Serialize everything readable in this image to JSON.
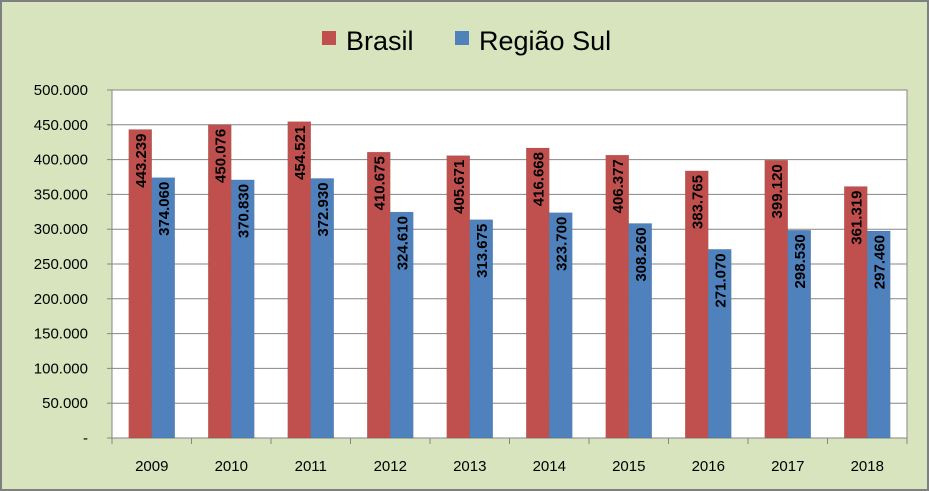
{
  "chart_data": {
    "type": "bar",
    "categories": [
      "2009",
      "2010",
      "2011",
      "2012",
      "2013",
      "2014",
      "2015",
      "2016",
      "2017",
      "2018"
    ],
    "series": [
      {
        "name": "Brasil",
        "color": "#c0504d",
        "values": [
          443239,
          450076,
          454521,
          410675,
          405671,
          416668,
          406377,
          383765,
          399120,
          361319
        ],
        "labels": [
          "443.239",
          "450.076",
          "454.521",
          "410.675",
          "405.671",
          "416.668",
          "406.377",
          "383.765",
          "399.120",
          "361.319"
        ]
      },
      {
        "name": "Região Sul",
        "color": "#4f81bd",
        "values": [
          374060,
          370830,
          372930,
          324610,
          313675,
          323700,
          308260,
          271070,
          298530,
          297460
        ],
        "labels": [
          "374.060",
          "370.830",
          "372.930",
          "324.610",
          "313.675",
          "323.700",
          "308.260",
          "271.070",
          "298.530",
          "297.460"
        ]
      }
    ],
    "ylim": [
      0,
      500000
    ],
    "yticks": [
      0,
      50000,
      100000,
      150000,
      200000,
      250000,
      300000,
      350000,
      400000,
      450000,
      500000
    ],
    "ytick_labels": [
      "-",
      "50.000",
      "100.000",
      "150.000",
      "200.000",
      "250.000",
      "300.000",
      "350.000",
      "400.000",
      "450.000",
      "500.000"
    ],
    "grid": true,
    "legend_position": "top",
    "plot_background": "#ffffff",
    "chart_background": "#d7e4bd",
    "title": "",
    "xlabel": "",
    "ylabel": ""
  }
}
